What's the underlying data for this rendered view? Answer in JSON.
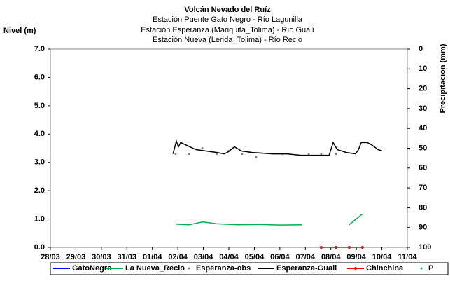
{
  "chart_data": {
    "type": "line",
    "title": "Volcán Nevado del Ruíz",
    "subtitle": [
      "Estación Puente Gato Negro - Río Lagunilla",
      "Estación Esperanza (Mariquita_Tolima) - Río Gualí",
      "Estación Nueva (Lerida_Tolima) - Río Recio"
    ],
    "y_label": "Nivel (m)",
    "y2_label": "Precipitacion (mm)",
    "xlim": [
      0,
      14
    ],
    "xticks": [
      {
        "value": 0,
        "label": "28/03"
      },
      {
        "value": 1,
        "label": "29/03"
      },
      {
        "value": 2,
        "label": "30/03"
      },
      {
        "value": 3,
        "label": "31/03"
      },
      {
        "value": 4,
        "label": "01/04"
      },
      {
        "value": 5,
        "label": "02/04"
      },
      {
        "value": 6,
        "label": "03/04"
      },
      {
        "value": 7,
        "label": "04/04"
      },
      {
        "value": 8,
        "label": "05/04"
      },
      {
        "value": 9,
        "label": "06/04"
      },
      {
        "value": 10,
        "label": "07/04"
      },
      {
        "value": 11,
        "label": "08/04"
      },
      {
        "value": 12,
        "label": "09/04"
      },
      {
        "value": 13,
        "label": "10/04"
      },
      {
        "value": 14,
        "label": "11/04"
      }
    ],
    "ylim": [
      0,
      7
    ],
    "yticks": [
      {
        "value": 0,
        "label": "0.0"
      },
      {
        "value": 1,
        "label": "1.0"
      },
      {
        "value": 2,
        "label": "2.0"
      },
      {
        "value": 3,
        "label": "3.0"
      },
      {
        "value": 4,
        "label": "4.0"
      },
      {
        "value": 5,
        "label": "5.0"
      },
      {
        "value": 6,
        "label": "6.0"
      },
      {
        "value": 7,
        "label": "7.0"
      }
    ],
    "y2lim": [
      0,
      100
    ],
    "y2_inverted": true,
    "y2ticks": [
      0,
      10,
      20,
      30,
      40,
      50,
      60,
      70,
      80,
      90,
      100
    ],
    "series": [
      {
        "name": "GatoNegro",
        "color": "#0000ff",
        "mode": "line",
        "x": [],
        "values": []
      },
      {
        "name": "La Nueva_Recio",
        "color": "#00b050",
        "mode": "line",
        "x": [
          4.91,
          5.44,
          5.98,
          6.53,
          7.36,
          8.18,
          9.0,
          9.88,
          10.8,
          11.72,
          12.24
        ],
        "values": [
          0.82,
          0.8,
          0.9,
          0.83,
          0.8,
          0.81,
          0.79,
          0.8,
          null,
          0.8,
          1.18
        ]
      },
      {
        "name": "Esperanza-obs",
        "color": "#808080",
        "mode": "markers",
        "x": [
          4.91,
          5.44,
          5.96,
          6.53,
          7.0,
          7.52,
          8.07,
          9.11,
          10.13,
          10.62,
          11.2
        ],
        "values": [
          3.3,
          3.3,
          3.5,
          3.3,
          3.4,
          3.3,
          3.18,
          3.3,
          3.3,
          3.3,
          3.3
        ]
      },
      {
        "name": "Esperanza-Guali",
        "color": "#000000",
        "mode": "line",
        "x": [
          4.81,
          4.94,
          5.02,
          5.11,
          5.71,
          6.53,
          6.81,
          6.94,
          7.22,
          7.49,
          7.91,
          8.73,
          9.28,
          9.83,
          10.93,
          11.09,
          11.25,
          11.61,
          11.97,
          12.08,
          12.19,
          12.43,
          12.63,
          12.85,
          13.01
        ],
        "values": [
          3.3,
          3.75,
          3.55,
          3.7,
          3.45,
          3.35,
          3.3,
          3.35,
          3.55,
          3.4,
          3.35,
          3.3,
          3.3,
          3.25,
          3.25,
          3.7,
          3.45,
          3.35,
          3.3,
          3.45,
          3.7,
          3.7,
          3.6,
          3.45,
          3.4
        ]
      },
      {
        "name": "Chinchina",
        "color": "#ff0000",
        "mode": "line-markers",
        "x": [
          10.62,
          11.2,
          11.72,
          12.24
        ],
        "values": [
          0,
          0,
          0,
          0
        ]
      },
      {
        "name": "P",
        "color": "#00b050",
        "mode": "markers",
        "axis": "y2",
        "x": [],
        "values": []
      }
    ]
  }
}
